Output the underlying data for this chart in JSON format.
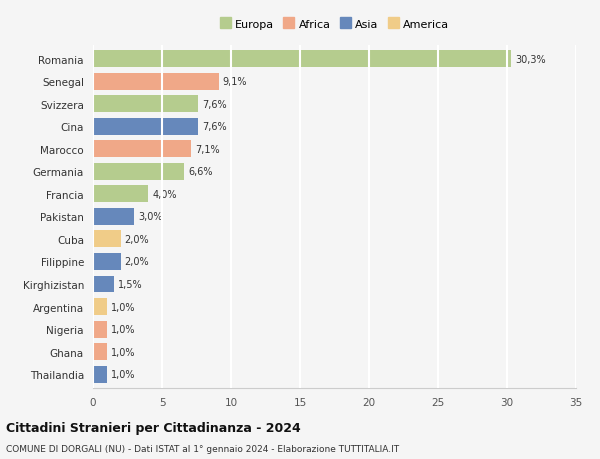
{
  "categories": [
    "Romania",
    "Senegal",
    "Svizzera",
    "Cina",
    "Marocco",
    "Germania",
    "Francia",
    "Pakistan",
    "Cuba",
    "Filippine",
    "Kirghizistan",
    "Argentina",
    "Nigeria",
    "Ghana",
    "Thailandia"
  ],
  "values": [
    30.3,
    9.1,
    7.6,
    7.6,
    7.1,
    6.6,
    4.0,
    3.0,
    2.0,
    2.0,
    1.5,
    1.0,
    1.0,
    1.0,
    1.0
  ],
  "labels": [
    "30,3%",
    "9,1%",
    "7,6%",
    "7,6%",
    "7,1%",
    "6,6%",
    "4,0%",
    "3,0%",
    "2,0%",
    "2,0%",
    "1,5%",
    "1,0%",
    "1,0%",
    "1,0%",
    "1,0%"
  ],
  "continents": [
    "Europa",
    "Africa",
    "Europa",
    "Asia",
    "Africa",
    "Europa",
    "Europa",
    "Asia",
    "America",
    "Asia",
    "Asia",
    "America",
    "Africa",
    "Africa",
    "Asia"
  ],
  "colors": {
    "Europa": "#b5cc8e",
    "Africa": "#f0a888",
    "Asia": "#6688bb",
    "America": "#f0cc88"
  },
  "legend_order": [
    "Europa",
    "Africa",
    "Asia",
    "America"
  ],
  "legend_colors": [
    "#b5cc8e",
    "#f0a888",
    "#6688bb",
    "#f0cc88"
  ],
  "title": "Cittadini Stranieri per Cittadinanza - 2024",
  "subtitle": "COMUNE DI DORGALI (NU) - Dati ISTAT al 1° gennaio 2024 - Elaborazione TUTTITALIA.IT",
  "xlim": [
    0,
    35
  ],
  "xticks": [
    0,
    5,
    10,
    15,
    20,
    25,
    30,
    35
  ],
  "background_color": "#f5f5f5",
  "grid_color": "#ffffff",
  "bar_height": 0.75
}
